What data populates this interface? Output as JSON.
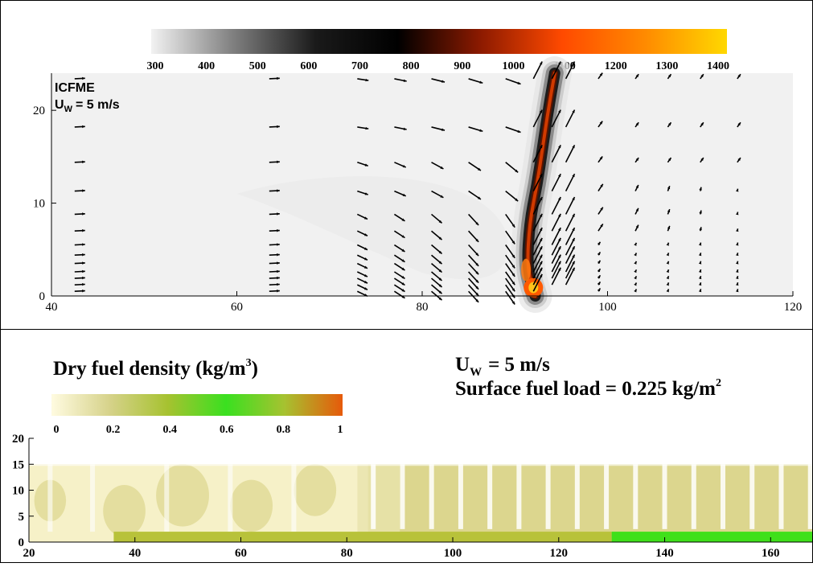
{
  "colors": {
    "temperature_scale": [
      "#f2f2f2",
      "#7f7f7f",
      "#1a1a1a",
      "#000000",
      "#8c1a00",
      "#ff4a00",
      "#ff8a00",
      "#ffd800"
    ],
    "fuel_scale": [
      "#fffbe0",
      "#d6d28a",
      "#a6c230",
      "#3ae020",
      "#a6c230",
      "#e65a0a"
    ],
    "axis": "#000000"
  },
  "chart_data": [
    {
      "type": "heatmap",
      "annotation_lines": [
        "ICFME",
        "= 5 m/s"
      ],
      "annotation_symbol": "U",
      "annotation_subscript": "W",
      "colorbar": {
        "ticks": [
          "300",
          "400",
          "500",
          "600",
          "700",
          "800",
          "900",
          "1000",
          "1100",
          "1200",
          "1300",
          "1400"
        ],
        "range": [
          300,
          1400
        ]
      },
      "xlim": [
        40,
        120
      ],
      "ylim": [
        0,
        24
      ],
      "xticks": [
        "40",
        "60",
        "80",
        "100",
        "120"
      ],
      "yticks": [
        "0",
        "10",
        "20"
      ],
      "plume": [
        {
          "x": 92.2,
          "y": 0
        },
        {
          "x": 91.3,
          "y": 3
        },
        {
          "x": 91.6,
          "y": 8
        },
        {
          "x": 92.4,
          "y": 12
        },
        {
          "x": 93.0,
          "y": 16
        },
        {
          "x": 93.6,
          "y": 20
        },
        {
          "x": 94.3,
          "y": 24
        }
      ],
      "vector_columns_x": [
        42.5,
        63.5,
        73,
        77,
        81,
        85,
        89,
        92,
        94,
        95.5,
        99,
        103,
        106.5,
        110,
        114
      ],
      "vector_rows_y": [
        0.5,
        1.2,
        1.9,
        2.6,
        3.5,
        4.4,
        5.5,
        7,
        8.8,
        11.3,
        14.4,
        18.2,
        23.4
      ]
    },
    {
      "type": "heatmap",
      "title": "Dry fuel density (kg/m",
      "title_superscript": "3",
      "title_close": ")",
      "annotation_symbol": "U",
      "annotation_subscript": "W",
      "annotation_line1": "= 5 m/s",
      "annotation_line2": "Surface fuel load = 0.225 kg/m",
      "annotation_line2_superscript": "2",
      "colorbar": {
        "ticks": [
          "0",
          "0.2",
          "0.4",
          "0.6",
          "0.8",
          "1"
        ],
        "range": [
          0,
          1
        ]
      },
      "xlim": [
        20,
        168
      ],
      "ylim": [
        0,
        20
      ],
      "xticks": [
        "20",
        "40",
        "60",
        "80",
        "100",
        "120",
        "140",
        "160"
      ],
      "yticks": [
        "0",
        "5",
        "10",
        "15",
        "20"
      ],
      "canopy_height": 15,
      "tree_columns_x": [
        85,
        90.5,
        96,
        101.5,
        107,
        112.5,
        118,
        123.5,
        129,
        134.5,
        140,
        145.5,
        151,
        156.5,
        162,
        167.5
      ],
      "surface_green_from_x": 130
    }
  ]
}
